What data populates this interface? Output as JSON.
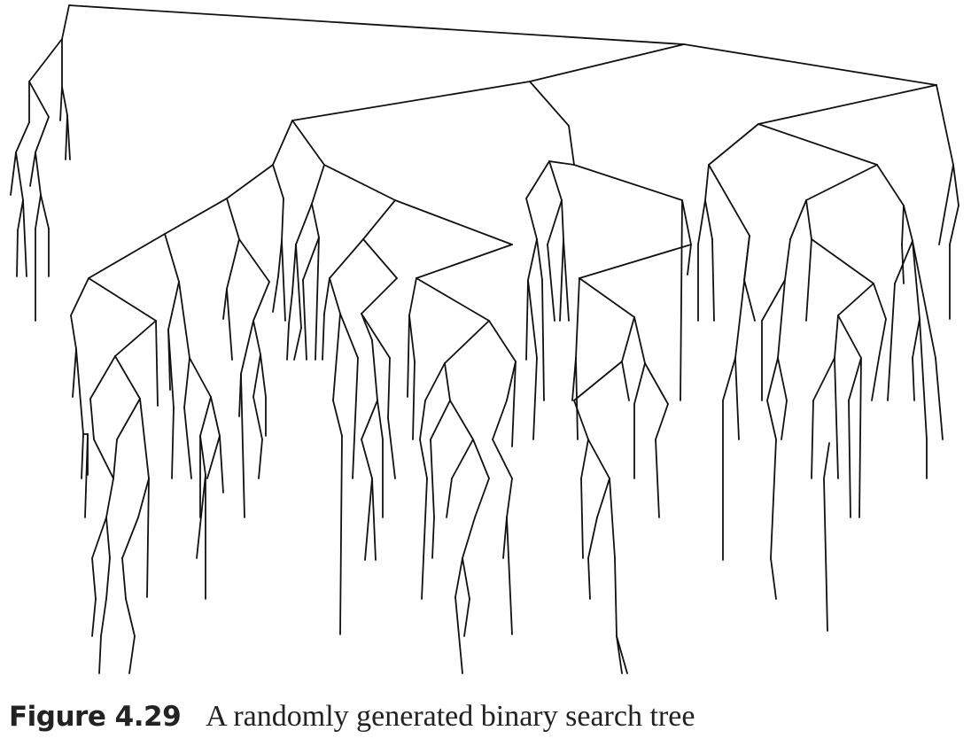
{
  "figure": {
    "label": "Figure 4.29",
    "caption": "A randomly generated binary search tree"
  },
  "colors": {
    "edge": "#111111",
    "background": "#ffffff",
    "text": "#222222"
  }
}
